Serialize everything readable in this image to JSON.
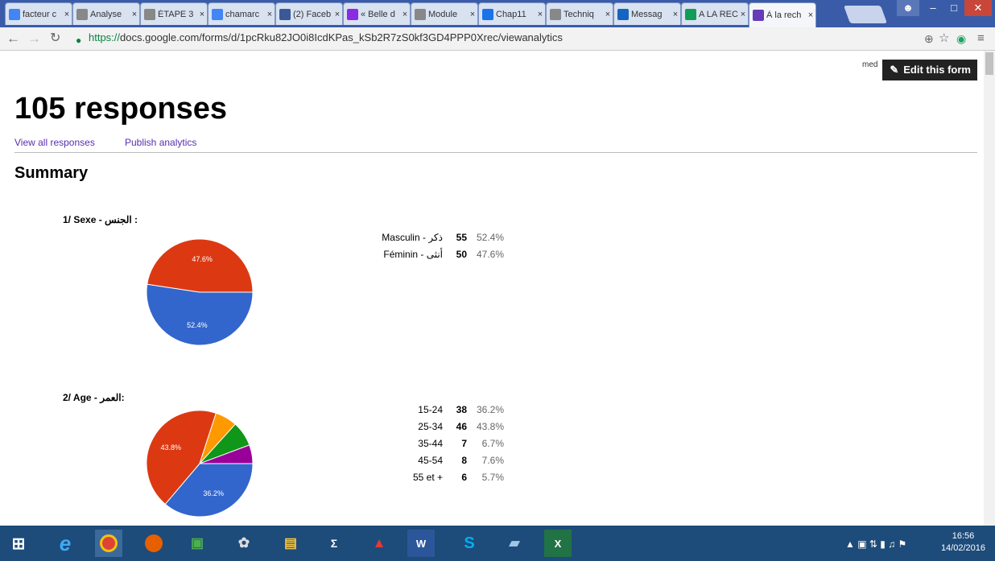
{
  "browser": {
    "tabs": [
      {
        "label": "facteur c",
        "icon": "google-icon",
        "color": "#4285f4"
      },
      {
        "label": "Analyse",
        "icon": "document-icon",
        "color": "#888888"
      },
      {
        "label": "ÉTAPE 3",
        "icon": "document-icon",
        "color": "#888888"
      },
      {
        "label": "chamarc",
        "icon": "google-icon",
        "color": "#4285f4"
      },
      {
        "label": "(2) Faceb",
        "icon": "facebook-icon",
        "color": "#3b5998"
      },
      {
        "label": "« Belle d",
        "icon": "vf-icon",
        "color": "#8a2be2"
      },
      {
        "label": "Module",
        "icon": "document-icon",
        "color": "#888888"
      },
      {
        "label": "Chap11",
        "icon": "drive-icon",
        "color": "#1a73e8"
      },
      {
        "label": "Techniq",
        "icon": "document-icon",
        "color": "#888888"
      },
      {
        "label": "Messag",
        "icon": "mail-icon",
        "color": "#1565c0"
      },
      {
        "label": "A LA REC",
        "icon": "sheets-icon",
        "color": "#0f9d58"
      },
      {
        "label": "À la rech",
        "icon": "forms-icon",
        "color": "#673ab7"
      }
    ],
    "url_https": "https://",
    "url_rest": "docs.google.com/forms/d/1pcRku82JO0i8IcdKPas_kSb2R7zS0kf3GD4PPP0Xrec/viewanalytics"
  },
  "page": {
    "user": "med",
    "edit_button": "Edit this form",
    "title": "105 responses",
    "links": [
      "View all responses",
      "Publish analytics"
    ],
    "summary": "Summary"
  },
  "questions": [
    {
      "title": "1/ Sexe - الجنس :",
      "rows": [
        {
          "label": "Masculin - ذكر",
          "count": "55",
          "pct": "52.4%",
          "value": 52.4,
          "color": "#3366cc"
        },
        {
          "label": "Féminin - أنثى",
          "count": "50",
          "pct": "47.6%",
          "value": 47.6,
          "color": "#dc3912"
        }
      ],
      "slice_labels": [
        "52.4%",
        "47.6%"
      ]
    },
    {
      "title": "2/ Age - العمر:",
      "rows": [
        {
          "label": "15-24",
          "count": "38",
          "pct": "36.2%",
          "value": 36.2,
          "color": "#3366cc"
        },
        {
          "label": "25-34",
          "count": "46",
          "pct": "43.8%",
          "value": 43.8,
          "color": "#dc3912"
        },
        {
          "label": "35-44",
          "count": "7",
          "pct": "6.7%",
          "value": 6.7,
          "color": "#ff9900"
        },
        {
          "label": "45-54",
          "count": "8",
          "pct": "7.6%",
          "value": 7.6,
          "color": "#109618"
        },
        {
          "label": "55 et +",
          "count": "6",
          "pct": "5.7%",
          "value": 5.7,
          "color": "#990099"
        }
      ],
      "slice_labels": [
        "36.2%",
        "43.8%",
        "",
        "",
        ""
      ]
    }
  ],
  "taskbar": {
    "time": "16:56",
    "date": "14/02/2016"
  }
}
